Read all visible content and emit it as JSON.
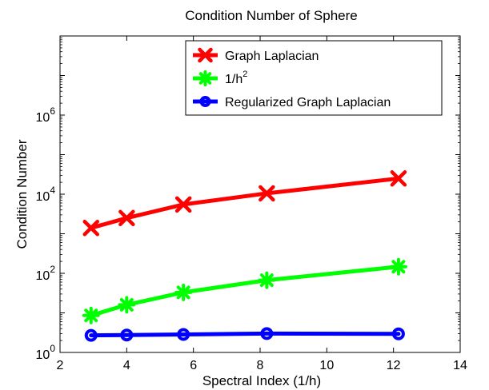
{
  "chart_data": {
    "type": "line",
    "title": "Condition Number of Sphere",
    "xlabel": "Spectral Index (1/h)",
    "ylabel": "Condition Number",
    "xlim": [
      2,
      14
    ],
    "ylim": [
      1,
      100000000
    ],
    "yscale": "log",
    "grid": false,
    "legend_position": "top-right",
    "x_ticks": [
      "2",
      "4",
      "6",
      "8",
      "10",
      "12",
      "14"
    ],
    "y_ticks": [
      {
        "base": "10",
        "exp": "0"
      },
      {
        "base": "10",
        "exp": "2"
      },
      {
        "base": "10",
        "exp": "4"
      },
      {
        "base": "10",
        "exp": "6"
      }
    ],
    "x": [
      2.93,
      4.0,
      5.7,
      8.2,
      12.15
    ],
    "series": [
      {
        "name": "Graph Laplacian",
        "color": "#ff0000",
        "marker": "x",
        "values": [
          1400,
          2500,
          5500,
          10500,
          25000
        ]
      },
      {
        "name_main": "1/h",
        "name_sup": "2",
        "color": "#00ff00",
        "marker": "star",
        "values": [
          8.6,
          16,
          33,
          67,
          147
        ]
      },
      {
        "name": "Regularized Graph Laplacian",
        "color": "#0000ff",
        "marker": "circle",
        "values": [
          2.7,
          2.75,
          2.85,
          3.0,
          2.95
        ]
      }
    ]
  }
}
